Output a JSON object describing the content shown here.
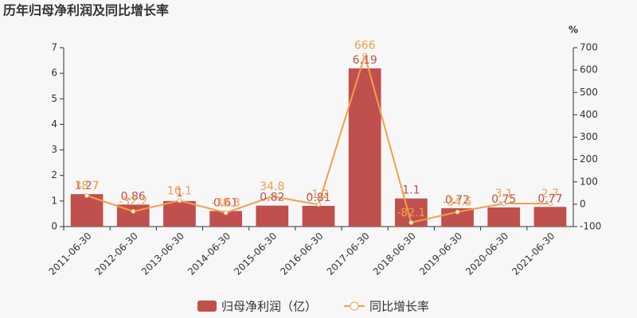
{
  "chart_data": {
    "type": "bar_line",
    "title": "历年归母净利润及同比增长率",
    "categories": [
      "2011-06-30",
      "2012-06-30",
      "2013-06-30",
      "2014-06-30",
      "2015-06-30",
      "2016-06-30",
      "2017-06-30",
      "2018-06-30",
      "2019-06-30",
      "2020-06-30",
      "2021-06-30"
    ],
    "series": [
      {
        "name": "归母净利润（亿）",
        "color": "#c0504d",
        "values": [
          1.27,
          0.86,
          1,
          0.61,
          0.82,
          0.81,
          6.19,
          1.1,
          0.72,
          0.75,
          0.77
        ]
      },
      {
        "name": "同比增长率",
        "color": "#f0a04b",
        "axis": "y2",
        "values": [
          38.7,
          -32.2,
          16.1,
          -38.3,
          34.8,
          -1.2,
          666,
          -82.1,
          -34.5,
          3.1,
          2.7
        ]
      }
    ],
    "ylim": [
      0,
      7
    ],
    "yticks": [
      0,
      1,
      2,
      3,
      4,
      5,
      6,
      7
    ],
    "y2lim": [
      -100,
      700
    ],
    "y2ticks": [
      -100,
      0,
      100,
      200,
      300,
      400,
      500,
      600,
      700
    ],
    "y2label": "%"
  }
}
